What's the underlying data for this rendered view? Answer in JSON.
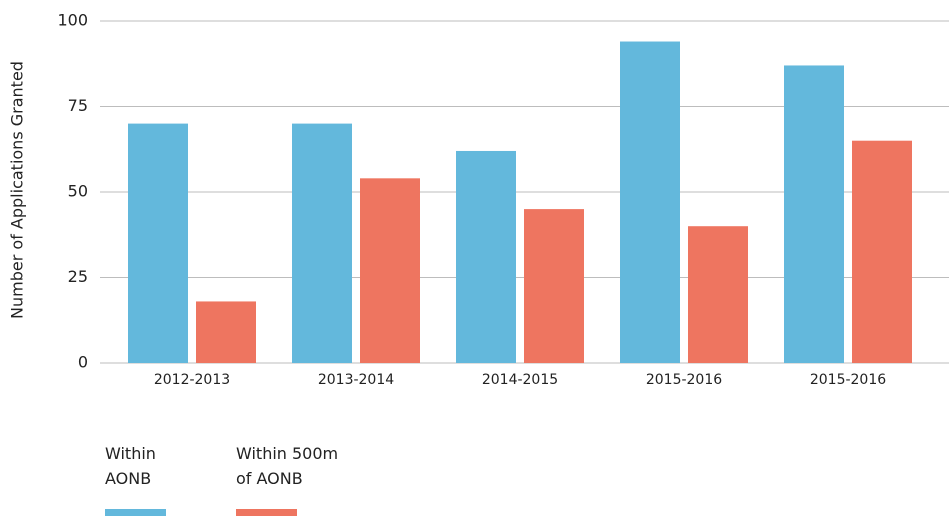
{
  "chart_data": {
    "type": "bar",
    "y_label": "Number of Applications Granted",
    "categories": [
      "2012-2013",
      "2013-2014",
      "2014-2015",
      "2015-2016",
      "2015-2016"
    ],
    "series": [
      {
        "name": "Within\nAONB",
        "color": "#63b8dc",
        "values": [
          70,
          70,
          62,
          94,
          87
        ]
      },
      {
        "name": "Within 500m\nof AONB",
        "color": "#ee7560",
        "values": [
          18,
          54,
          45,
          40,
          65
        ]
      }
    ],
    "ylim": [
      0,
      100
    ],
    "yticks": [
      0,
      25,
      50,
      75,
      100
    ],
    "grid": true,
    "legend": "bottom-left"
  }
}
